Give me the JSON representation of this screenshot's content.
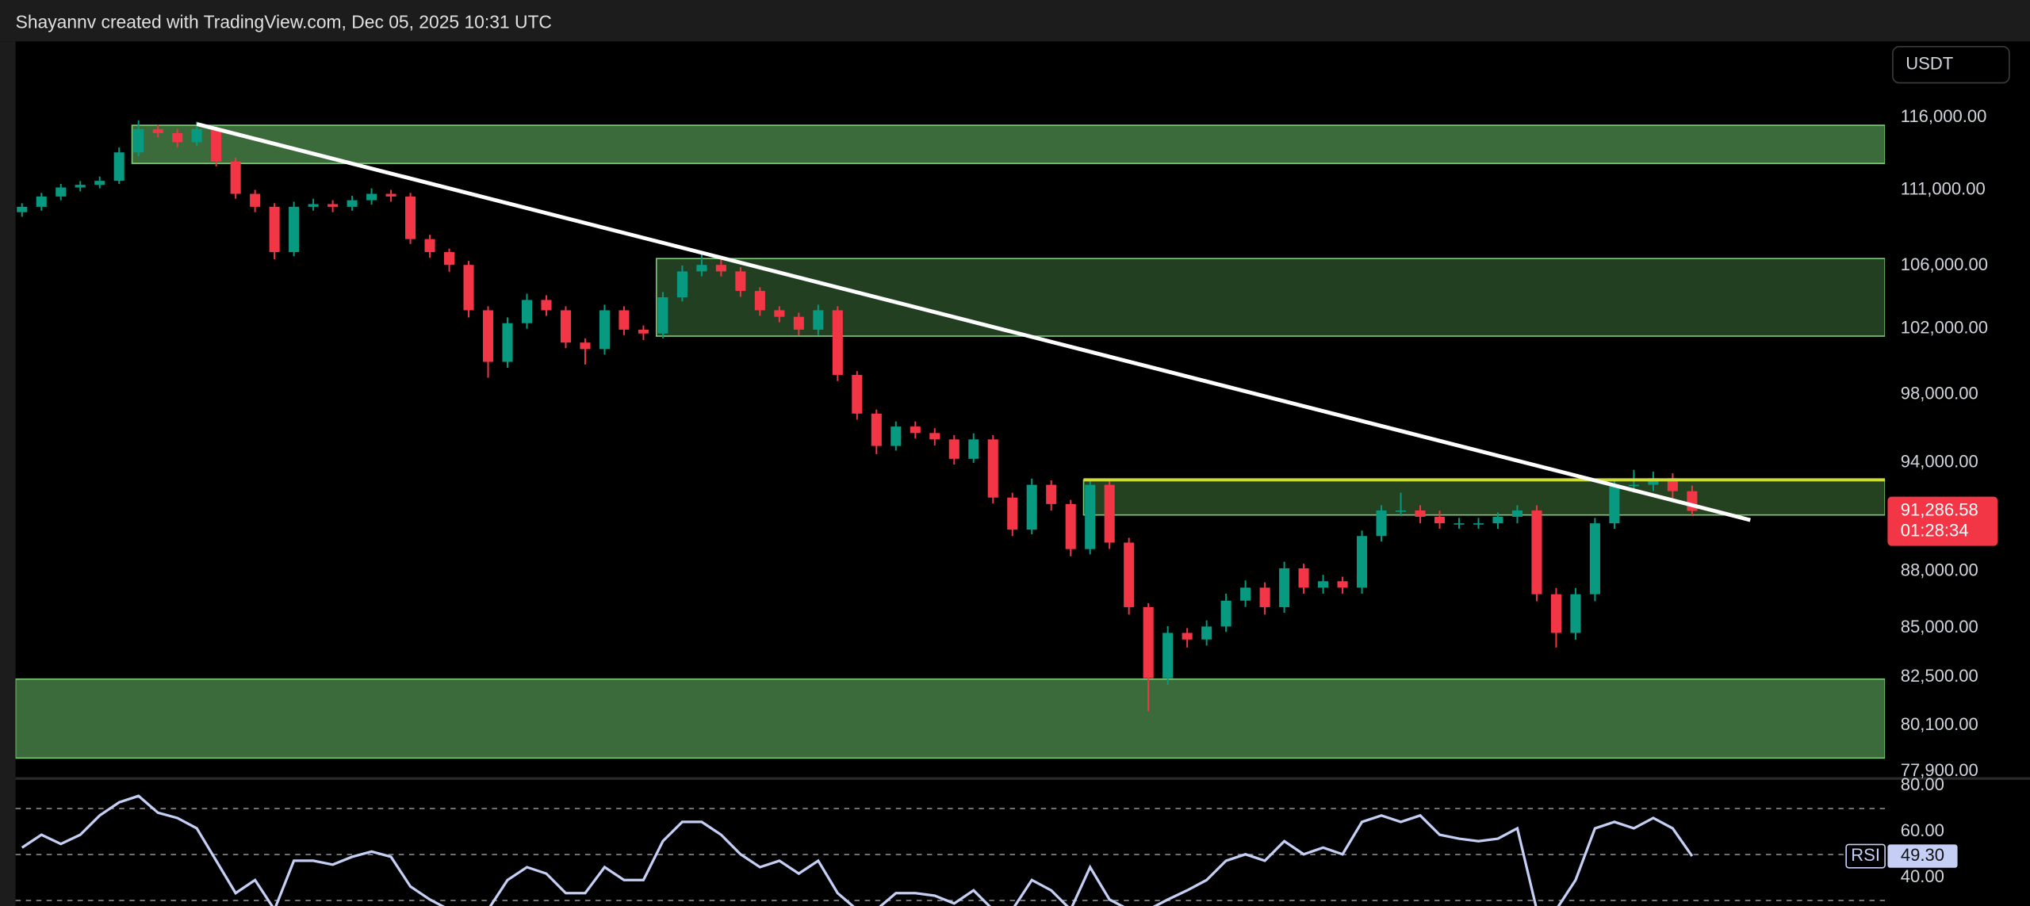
{
  "header": "Shayannv created with TradingView.com, Dec 05, 2025 10:31 UTC",
  "chart_data": [
    {
      "type": "candlestick",
      "currency": "USDT",
      "log": true,
      "ylim": [
        77650,
        121500
      ],
      "yticks": [
        {
          "value": 116000,
          "label": "116,000.00"
        },
        {
          "value": 111000,
          "label": "111,000.00"
        },
        {
          "value": 106000,
          "label": "106,000.00"
        },
        {
          "value": 102000,
          "label": "102,000.00"
        },
        {
          "value": 98000,
          "label": "98,000.00"
        },
        {
          "value": 94000,
          "label": "94,000.00"
        },
        {
          "value": 88000,
          "label": "88,000.00"
        },
        {
          "value": 85000,
          "label": "85,000.00"
        },
        {
          "value": 82500,
          "label": "82,500.00"
        },
        {
          "value": 80100,
          "label": "80,100.00"
        },
        {
          "value": 77900,
          "label": "77,900.00"
        }
      ],
      "up_color": "#089981",
      "down_color": "#f23645",
      "last_price": 91286.58,
      "last_price_label": "91,286.58",
      "countdown": "01:28:34",
      "zones": [
        {
          "low": 112800,
          "high": 115450,
          "from": 6,
          "color": "#3b6b3a"
        },
        {
          "low": 101540,
          "high": 106450,
          "from": 33,
          "color": "#233f22"
        },
        {
          "low": 91060,
          "high": 93030,
          "from": 55,
          "color": "#24421f"
        },
        {
          "low": 78530,
          "high": 82400,
          "from": 0,
          "color": "#3b6b3a"
        }
      ],
      "trendline": {
        "points": [
          [
            9,
            115540
          ],
          [
            89,
            90780
          ]
        ],
        "color": "#ffffff"
      },
      "level": {
        "value": 93030,
        "from": 55,
        "color": "#cddc39"
      },
      "candles": [
        [
          109500,
          110100,
          109200,
          109860
        ],
        [
          109860,
          110800,
          109600,
          110550
        ],
        [
          110550,
          111400,
          110300,
          111160
        ],
        [
          111160,
          111600,
          110900,
          111340
        ],
        [
          111340,
          111900,
          111100,
          111610
        ],
        [
          111610,
          113900,
          111400,
          113560
        ],
        [
          113560,
          115800,
          113300,
          115180
        ],
        [
          115180,
          115500,
          114600,
          114900
        ],
        [
          114900,
          115200,
          113900,
          114270
        ],
        [
          114270,
          115700,
          114000,
          115180
        ],
        [
          115180,
          115400,
          112600,
          112930
        ],
        [
          112930,
          113200,
          110400,
          110730
        ],
        [
          110730,
          111000,
          109500,
          109860
        ],
        [
          109860,
          110100,
          106400,
          106870
        ],
        [
          106870,
          110200,
          106600,
          109860
        ],
        [
          109860,
          110400,
          109600,
          110040
        ],
        [
          110040,
          110300,
          109500,
          109860
        ],
        [
          109860,
          110600,
          109600,
          110300
        ],
        [
          110300,
          111100,
          110000,
          110730
        ],
        [
          110730,
          111000,
          110200,
          110550
        ],
        [
          110550,
          110800,
          107400,
          107720
        ],
        [
          107720,
          108000,
          106500,
          106870
        ],
        [
          106870,
          107100,
          105600,
          106040
        ],
        [
          106040,
          106300,
          102700,
          103150
        ],
        [
          103150,
          103400,
          99000,
          99960
        ],
        [
          99960,
          102700,
          99600,
          102340
        ],
        [
          102340,
          104200,
          102000,
          103800
        ],
        [
          103800,
          104100,
          102800,
          103150
        ],
        [
          103150,
          103400,
          100800,
          101140
        ],
        [
          101140,
          101400,
          99800,
          100740
        ],
        [
          100740,
          103500,
          100400,
          103150
        ],
        [
          103150,
          103400,
          101600,
          101940
        ],
        [
          101940,
          102200,
          101300,
          101700
        ],
        [
          101700,
          104300,
          101400,
          103970
        ],
        [
          103970,
          106000,
          103700,
          105620
        ],
        [
          105620,
          106900,
          105300,
          106040
        ],
        [
          106040,
          106400,
          105300,
          105620
        ],
        [
          105620,
          105900,
          104000,
          104370
        ],
        [
          104370,
          104600,
          102800,
          103150
        ],
        [
          103150,
          103400,
          102400,
          102740
        ],
        [
          102740,
          103000,
          101600,
          101940
        ],
        [
          101940,
          103500,
          101600,
          103150
        ],
        [
          103150,
          103400,
          98800,
          99170
        ],
        [
          99170,
          99400,
          96500,
          96860
        ],
        [
          96860,
          97100,
          94500,
          94970
        ],
        [
          94970,
          96400,
          94700,
          96100
        ],
        [
          96100,
          96400,
          95400,
          95720
        ],
        [
          95720,
          96000,
          95000,
          95350
        ],
        [
          95350,
          95600,
          93900,
          94230
        ],
        [
          94230,
          95700,
          94000,
          95350
        ],
        [
          95350,
          95600,
          91700,
          92030
        ],
        [
          92030,
          92300,
          89900,
          90250
        ],
        [
          90250,
          93100,
          90000,
          92750
        ],
        [
          92750,
          93000,
          91300,
          91670
        ],
        [
          91670,
          91900,
          88800,
          89190
        ],
        [
          89190,
          93100,
          88900,
          92750
        ],
        [
          92750,
          93000,
          89200,
          89540
        ],
        [
          89540,
          89800,
          85700,
          86090
        ],
        [
          86090,
          86300,
          80800,
          82450
        ],
        [
          82450,
          85100,
          82100,
          84750
        ],
        [
          84750,
          85000,
          84000,
          84410
        ],
        [
          84410,
          85400,
          84100,
          85080
        ],
        [
          85080,
          86800,
          84800,
          86430
        ],
        [
          86430,
          87500,
          86100,
          87120
        ],
        [
          87120,
          87400,
          85700,
          86090
        ],
        [
          86090,
          88500,
          85800,
          88150
        ],
        [
          88150,
          88400,
          86800,
          87120
        ],
        [
          87120,
          87800,
          86800,
          87460
        ],
        [
          87460,
          87700,
          86800,
          87120
        ],
        [
          87120,
          90200,
          86800,
          89900
        ],
        [
          89900,
          91600,
          89600,
          91310
        ],
        [
          91310,
          92300,
          91000,
          91310
        ],
        [
          91310,
          91600,
          90600,
          90960
        ],
        [
          90960,
          91300,
          90300,
          90600
        ],
        [
          90600,
          90900,
          90300,
          90600
        ],
        [
          90600,
          90900,
          90300,
          90600
        ],
        [
          90600,
          91200,
          90300,
          90960
        ],
        [
          90960,
          91600,
          90600,
          91310
        ],
        [
          91310,
          91600,
          86400,
          86770
        ],
        [
          86770,
          87100,
          84000,
          84750
        ],
        [
          84750,
          87100,
          84400,
          86770
        ],
        [
          86770,
          90900,
          86400,
          90600
        ],
        [
          90600,
          93100,
          90300,
          92750
        ],
        [
          92750,
          93600,
          92300,
          92750
        ],
        [
          92750,
          93500,
          92400,
          93120
        ],
        [
          93120,
          93400,
          92000,
          92390
        ],
        [
          92390,
          92700,
          91000,
          91286.58
        ]
      ]
    },
    {
      "type": "line",
      "ylim": [
        27.6,
        82.8
      ],
      "yticks": [
        {
          "value": 80,
          "label": "80.00"
        },
        {
          "value": 60,
          "label": "60.00"
        },
        {
          "value": 40,
          "label": "40.00"
        }
      ],
      "dashed_levels": [
        70,
        50,
        30
      ],
      "series": [
        {
          "name": "RSI",
          "color": "#c5cff5",
          "last_label": "49.30",
          "values": [
            53.0,
            58.6,
            54.6,
            58.6,
            67.0,
            72.7,
            75.5,
            68.2,
            65.9,
            61.4,
            47.3,
            33.2,
            38.9,
            26,
            47.3,
            47.3,
            45.6,
            49.0,
            51.3,
            49.0,
            36.1,
            30.4,
            26,
            26,
            26,
            38.9,
            44.5,
            41.7,
            33.2,
            33.2,
            44.5,
            38.9,
            38.9,
            55.8,
            64.2,
            64.2,
            58.6,
            50.1,
            44.5,
            47.3,
            41.7,
            47.3,
            33.2,
            26,
            26,
            33.2,
            33.2,
            32.1,
            28.7,
            34.4,
            26,
            26,
            38.9,
            34.4,
            26,
            44.5,
            30.4,
            26,
            26,
            30.4,
            34.4,
            38.9,
            47.3,
            50.1,
            47.3,
            55.8,
            50.1,
            53.0,
            50.1,
            64.2,
            67.0,
            64.2,
            67.0,
            58.6,
            56.9,
            55.8,
            56.9,
            61.4,
            26,
            26,
            38.9,
            61.4,
            64.2,
            61.4,
            65.9,
            61.4,
            49.3
          ]
        }
      ]
    }
  ]
}
